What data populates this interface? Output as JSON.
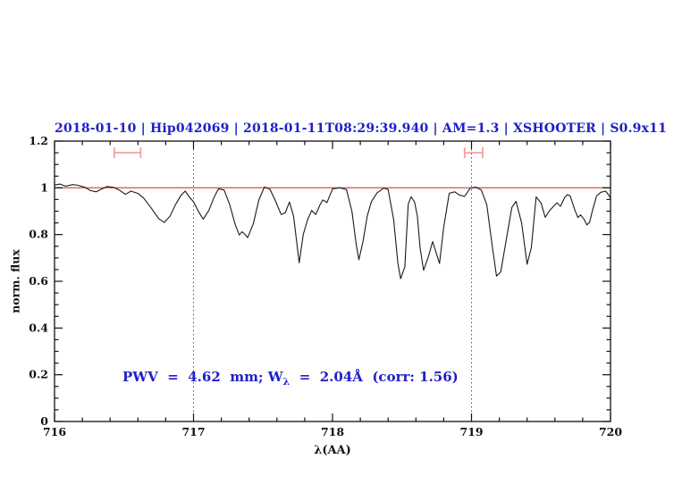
{
  "page": {
    "background": "#ffffff"
  },
  "chart_data": {
    "type": "line",
    "title": "2018-01-10 | Hip042069 | 2018-01-11T08:29:39.940 | AM=1.3 | XSHOOTER | S0.9x11",
    "title_color": "#2020c8",
    "xlabel": "λ(AA)",
    "ylabel": "norm. flux",
    "xlim": [
      716,
      720
    ],
    "ylim": [
      0,
      1.2
    ],
    "x_major_ticks": [
      716,
      717,
      718,
      719,
      720
    ],
    "x_tick_labels": [
      "716",
      "717",
      "718",
      "719",
      "720"
    ],
    "x_minor_step": 0.2,
    "y_major_ticks": [
      0,
      0.2,
      0.4,
      0.6,
      0.8,
      1,
      1.2
    ],
    "y_tick_labels": [
      "0",
      "0.2",
      "0.4",
      "0.6",
      "0.8",
      "1",
      "1.2"
    ],
    "y_minor_step": 0.05,
    "grid": "off",
    "legend": "none",
    "dotted_vlines": {
      "color": "#555555",
      "x": [
        717,
        719
      ]
    },
    "reference_line": {
      "y": 1.0,
      "color": "#e05c5c"
    },
    "range_markers": {
      "color": "#f29b9b",
      "items": [
        {
          "x1": 716.43,
          "x2": 716.62,
          "y": 1.15
        },
        {
          "x1": 718.95,
          "x2": 719.08,
          "y": 1.15
        }
      ]
    },
    "annotation": {
      "pre": "PWV  =  4.62  mm; W",
      "sub": "λ",
      "post": "  =  2.04Å  (corr: 1.56)",
      "color": "#2020c8"
    },
    "series": [
      {
        "name": "telluric-spectrum",
        "color": "#1a1a1a",
        "points": [
          [
            716.0,
            1.012
          ],
          [
            716.04,
            1.016
          ],
          [
            716.08,
            1.007
          ],
          [
            716.13,
            1.014
          ],
          [
            716.17,
            1.011
          ],
          [
            716.22,
            1.002
          ],
          [
            716.26,
            0.988
          ],
          [
            716.3,
            0.983
          ],
          [
            716.34,
            0.995
          ],
          [
            716.38,
            1.006
          ],
          [
            716.43,
            1.001
          ],
          [
            716.47,
            0.989
          ],
          [
            716.51,
            0.972
          ],
          [
            716.55,
            0.986
          ],
          [
            716.6,
            0.976
          ],
          [
            716.64,
            0.957
          ],
          [
            716.7,
            0.91
          ],
          [
            716.75,
            0.868
          ],
          [
            716.79,
            0.852
          ],
          [
            716.83,
            0.878
          ],
          [
            716.87,
            0.928
          ],
          [
            716.91,
            0.968
          ],
          [
            716.94,
            0.986
          ],
          [
            716.97,
            0.961
          ],
          [
            717.0,
            0.94
          ],
          [
            717.04,
            0.894
          ],
          [
            717.07,
            0.866
          ],
          [
            717.11,
            0.903
          ],
          [
            717.15,
            0.962
          ],
          [
            717.18,
            0.996
          ],
          [
            717.22,
            0.991
          ],
          [
            717.26,
            0.929
          ],
          [
            717.3,
            0.843
          ],
          [
            717.33,
            0.798
          ],
          [
            717.35,
            0.812
          ],
          [
            717.37,
            0.801
          ],
          [
            717.39,
            0.787
          ],
          [
            717.43,
            0.846
          ],
          [
            717.47,
            0.948
          ],
          [
            717.51,
            1.003
          ],
          [
            717.55,
            0.994
          ],
          [
            717.59,
            0.944
          ],
          [
            717.63,
            0.886
          ],
          [
            717.66,
            0.893
          ],
          [
            717.69,
            0.939
          ],
          [
            717.72,
            0.878
          ],
          [
            717.74,
            0.778
          ],
          [
            717.76,
            0.679
          ],
          [
            717.79,
            0.801
          ],
          [
            717.82,
            0.862
          ],
          [
            717.85,
            0.903
          ],
          [
            717.88,
            0.886
          ],
          [
            717.91,
            0.927
          ],
          [
            717.93,
            0.948
          ],
          [
            717.96,
            0.937
          ],
          [
            718.0,
            0.995
          ],
          [
            718.05,
            1.0
          ],
          [
            718.1,
            0.993
          ],
          [
            718.14,
            0.898
          ],
          [
            718.17,
            0.76
          ],
          [
            718.19,
            0.692
          ],
          [
            718.22,
            0.772
          ],
          [
            718.25,
            0.88
          ],
          [
            718.28,
            0.941
          ],
          [
            718.32,
            0.978
          ],
          [
            718.37,
            0.999
          ],
          [
            718.4,
            0.993
          ],
          [
            718.44,
            0.864
          ],
          [
            718.47,
            0.678
          ],
          [
            718.49,
            0.611
          ],
          [
            718.52,
            0.662
          ],
          [
            718.545,
            0.93
          ],
          [
            718.565,
            0.962
          ],
          [
            718.59,
            0.94
          ],
          [
            718.61,
            0.88
          ],
          [
            718.63,
            0.742
          ],
          [
            718.655,
            0.647
          ],
          [
            718.69,
            0.706
          ],
          [
            718.72,
            0.77
          ],
          [
            718.745,
            0.724
          ],
          [
            718.77,
            0.676
          ],
          [
            718.8,
            0.832
          ],
          [
            718.84,
            0.977
          ],
          [
            718.88,
            0.983
          ],
          [
            718.91,
            0.97
          ],
          [
            718.95,
            0.963
          ],
          [
            718.99,
            0.998
          ],
          [
            719.03,
            1.003
          ],
          [
            719.07,
            0.991
          ],
          [
            719.11,
            0.928
          ],
          [
            719.15,
            0.748
          ],
          [
            719.18,
            0.622
          ],
          [
            719.21,
            0.64
          ],
          [
            719.25,
            0.778
          ],
          [
            719.29,
            0.916
          ],
          [
            719.32,
            0.942
          ],
          [
            719.36,
            0.851
          ],
          [
            719.4,
            0.673
          ],
          [
            719.43,
            0.744
          ],
          [
            719.465,
            0.961
          ],
          [
            719.5,
            0.935
          ],
          [
            719.53,
            0.874
          ],
          [
            719.56,
            0.901
          ],
          [
            719.59,
            0.921
          ],
          [
            719.615,
            0.936
          ],
          [
            719.64,
            0.921
          ],
          [
            719.67,
            0.958
          ],
          [
            719.69,
            0.971
          ],
          [
            719.71,
            0.965
          ],
          [
            719.745,
            0.903
          ],
          [
            719.765,
            0.873
          ],
          [
            719.785,
            0.884
          ],
          [
            719.81,
            0.865
          ],
          [
            719.83,
            0.841
          ],
          [
            719.85,
            0.853
          ],
          [
            719.87,
            0.903
          ],
          [
            719.9,
            0.965
          ],
          [
            719.93,
            0.981
          ],
          [
            719.965,
            0.986
          ],
          [
            719.99,
            0.967
          ],
          [
            720.0,
            0.956
          ]
        ]
      }
    ]
  }
}
